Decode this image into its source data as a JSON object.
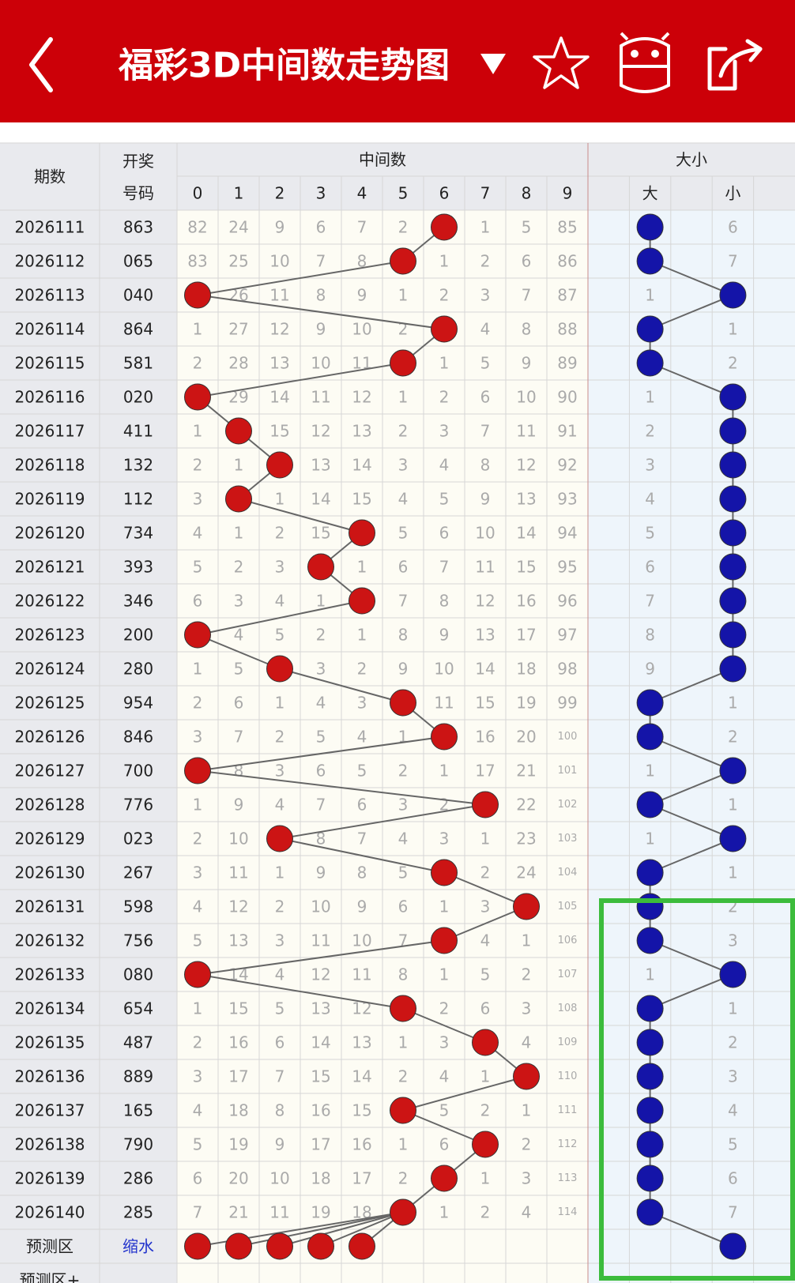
{
  "header": {
    "title": "福彩3D中间数走势图"
  },
  "table": {
    "columns": {
      "period": "期数",
      "number": [
        "开奖",
        "号码"
      ],
      "middle": "中间数",
      "digits": [
        0,
        1,
        2,
        3,
        4,
        5,
        6,
        7,
        8,
        9
      ],
      "size": "大小",
      "size_labels": [
        "大",
        "小"
      ]
    },
    "rows": [
      {
        "period": "2026111",
        "number": "863",
        "cells": [
          82,
          24,
          9,
          6,
          7,
          2,
          6,
          1,
          5,
          85
        ],
        "hit": 6,
        "size": [
          "大",
          6
        ]
      },
      {
        "period": "2026112",
        "number": "065",
        "cells": [
          83,
          25,
          10,
          7,
          8,
          5,
          1,
          2,
          6,
          86
        ],
        "hit": 5,
        "size": [
          "大",
          7
        ]
      },
      {
        "period": "2026113",
        "number": "040",
        "cells": [
          0,
          26,
          11,
          8,
          9,
          1,
          2,
          3,
          7,
          87
        ],
        "hit": 0,
        "size": [
          1,
          "小"
        ]
      },
      {
        "period": "2026114",
        "number": "864",
        "cells": [
          1,
          27,
          12,
          9,
          10,
          2,
          6,
          4,
          8,
          88
        ],
        "hit": 6,
        "size": [
          "大",
          1
        ]
      },
      {
        "period": "2026115",
        "number": "581",
        "cells": [
          2,
          28,
          13,
          10,
          11,
          5,
          1,
          5,
          9,
          89
        ],
        "hit": 5,
        "size": [
          "大",
          2
        ]
      },
      {
        "period": "2026116",
        "number": "020",
        "cells": [
          0,
          29,
          14,
          11,
          12,
          1,
          2,
          6,
          10,
          90
        ],
        "hit": 0,
        "size": [
          1,
          "小"
        ]
      },
      {
        "period": "2026117",
        "number": "411",
        "cells": [
          1,
          1,
          15,
          12,
          13,
          2,
          3,
          7,
          11,
          91
        ],
        "hit": 1,
        "size": [
          2,
          "小"
        ]
      },
      {
        "period": "2026118",
        "number": "132",
        "cells": [
          2,
          1,
          2,
          13,
          14,
          3,
          4,
          8,
          12,
          92
        ],
        "hit": 2,
        "size": [
          3,
          "小"
        ]
      },
      {
        "period": "2026119",
        "number": "112",
        "cells": [
          3,
          1,
          1,
          14,
          15,
          4,
          5,
          9,
          13,
          93
        ],
        "hit": 1,
        "size": [
          4,
          "小"
        ]
      },
      {
        "period": "2026120",
        "number": "734",
        "cells": [
          4,
          1,
          2,
          15,
          4,
          5,
          6,
          10,
          14,
          94
        ],
        "hit": 4,
        "size": [
          5,
          "小"
        ]
      },
      {
        "period": "2026121",
        "number": "393",
        "cells": [
          5,
          2,
          3,
          3,
          1,
          6,
          7,
          11,
          15,
          95
        ],
        "hit": 3,
        "size": [
          6,
          "小"
        ]
      },
      {
        "period": "2026122",
        "number": "346",
        "cells": [
          6,
          3,
          4,
          1,
          4,
          7,
          8,
          12,
          16,
          96
        ],
        "hit": 4,
        "size": [
          7,
          "小"
        ]
      },
      {
        "period": "2026123",
        "number": "200",
        "cells": [
          0,
          4,
          5,
          2,
          1,
          8,
          9,
          13,
          17,
          97
        ],
        "hit": 0,
        "size": [
          8,
          "小"
        ]
      },
      {
        "period": "2026124",
        "number": "280",
        "cells": [
          1,
          5,
          2,
          3,
          2,
          9,
          10,
          14,
          18,
          98
        ],
        "hit": 2,
        "size": [
          9,
          "小"
        ]
      },
      {
        "period": "2026125",
        "number": "954",
        "cells": [
          2,
          6,
          1,
          4,
          3,
          5,
          11,
          15,
          19,
          99
        ],
        "hit": 5,
        "size": [
          "大",
          1
        ]
      },
      {
        "period": "2026126",
        "number": "846",
        "cells": [
          3,
          7,
          2,
          5,
          4,
          1,
          6,
          16,
          20,
          100
        ],
        "hit": 6,
        "size": [
          "大",
          2
        ]
      },
      {
        "period": "2026127",
        "number": "700",
        "cells": [
          0,
          8,
          3,
          6,
          5,
          2,
          1,
          17,
          21,
          101
        ],
        "hit": 0,
        "size": [
          1,
          "小"
        ]
      },
      {
        "period": "2026128",
        "number": "776",
        "cells": [
          1,
          9,
          4,
          7,
          6,
          3,
          2,
          7,
          22,
          102
        ],
        "hit": 7,
        "size": [
          "大",
          1
        ]
      },
      {
        "period": "2026129",
        "number": "023",
        "cells": [
          2,
          10,
          2,
          8,
          7,
          4,
          3,
          1,
          23,
          103
        ],
        "hit": 2,
        "size": [
          1,
          "小"
        ]
      },
      {
        "period": "2026130",
        "number": "267",
        "cells": [
          3,
          11,
          1,
          9,
          8,
          5,
          6,
          2,
          24,
          104
        ],
        "hit": 6,
        "size": [
          "大",
          1
        ]
      },
      {
        "period": "2026131",
        "number": "598",
        "cells": [
          4,
          12,
          2,
          10,
          9,
          6,
          1,
          3,
          8,
          105
        ],
        "hit": 8,
        "size": [
          "大",
          2
        ]
      },
      {
        "period": "2026132",
        "number": "756",
        "cells": [
          5,
          13,
          3,
          11,
          10,
          7,
          6,
          4,
          1,
          106
        ],
        "hit": 6,
        "size": [
          "大",
          3
        ]
      },
      {
        "period": "2026133",
        "number": "080",
        "cells": [
          0,
          14,
          4,
          12,
          11,
          8,
          1,
          5,
          2,
          107
        ],
        "hit": 0,
        "size": [
          1,
          "小"
        ]
      },
      {
        "period": "2026134",
        "number": "654",
        "cells": [
          1,
          15,
          5,
          13,
          12,
          5,
          2,
          6,
          3,
          108
        ],
        "hit": 5,
        "size": [
          "大",
          1
        ]
      },
      {
        "period": "2026135",
        "number": "487",
        "cells": [
          2,
          16,
          6,
          14,
          13,
          1,
          3,
          7,
          4,
          109
        ],
        "hit": 7,
        "size": [
          "大",
          2
        ]
      },
      {
        "period": "2026136",
        "number": "889",
        "cells": [
          3,
          17,
          7,
          15,
          14,
          2,
          4,
          1,
          8,
          110
        ],
        "hit": 8,
        "size": [
          "大",
          3
        ]
      },
      {
        "period": "2026137",
        "number": "165",
        "cells": [
          4,
          18,
          8,
          16,
          15,
          5,
          5,
          2,
          1,
          111
        ],
        "hit": 5,
        "size": [
          "大",
          4
        ]
      },
      {
        "period": "2026138",
        "number": "790",
        "cells": [
          5,
          19,
          9,
          17,
          16,
          1,
          6,
          7,
          2,
          112
        ],
        "hit": 7,
        "size": [
          "大",
          5
        ]
      },
      {
        "period": "2026139",
        "number": "286",
        "cells": [
          6,
          20,
          10,
          18,
          17,
          2,
          6,
          1,
          3,
          113
        ],
        "hit": 6,
        "size": [
          "大",
          6
        ]
      },
      {
        "period": "2026140",
        "number": "285",
        "cells": [
          7,
          21,
          11,
          19,
          18,
          5,
          1,
          2,
          4,
          114
        ],
        "hit": 5,
        "size": [
          "大",
          7
        ]
      }
    ],
    "prediction": {
      "label": "预测区",
      "link": "缩水",
      "balls": [
        0,
        1,
        2,
        3,
        4
      ],
      "size": "小"
    },
    "next_label": "预测区+"
  }
}
